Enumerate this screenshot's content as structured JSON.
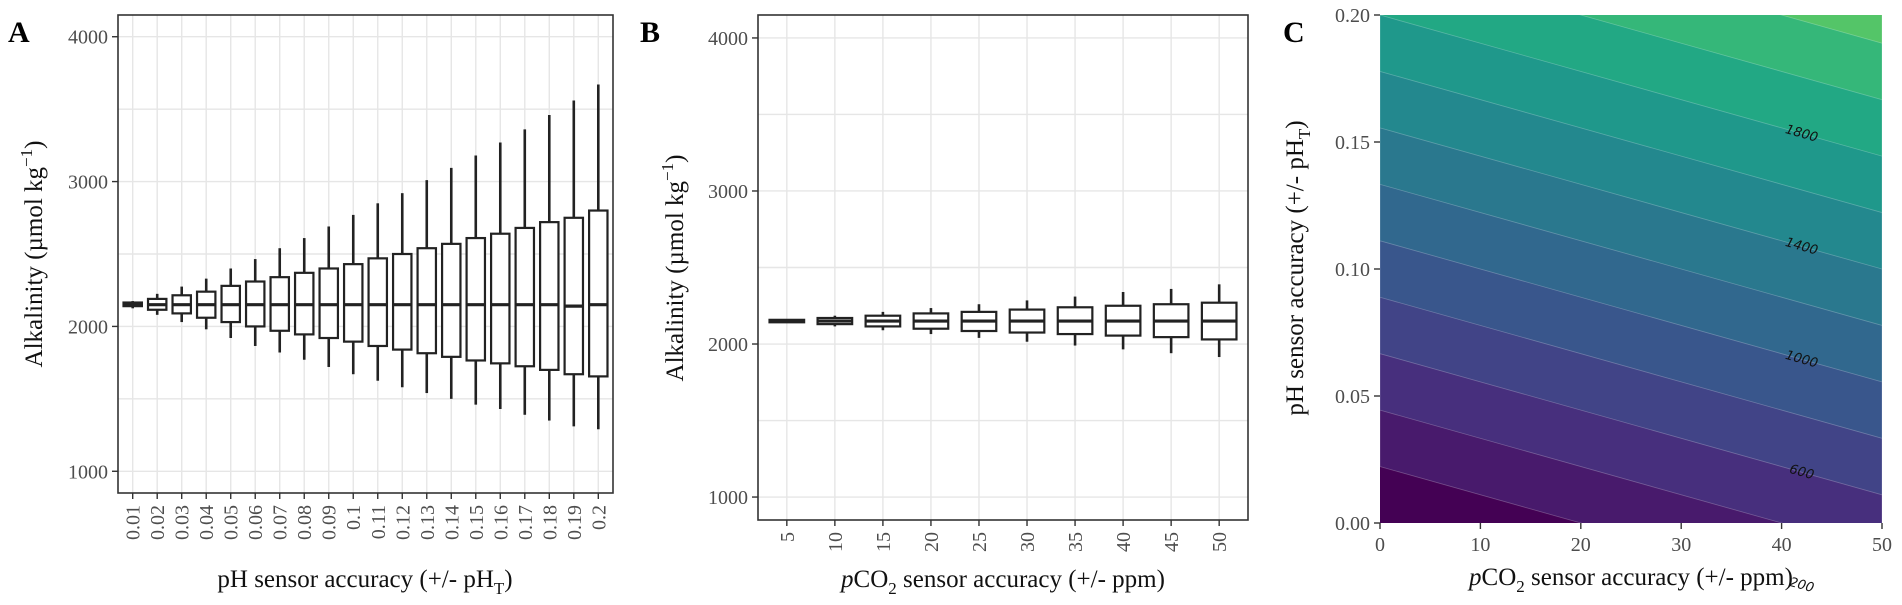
{
  "chart_data": [
    {
      "panel": "A",
      "type": "boxplot",
      "xlabel": "pH sensor accuracy (+/- pH",
      "xlabel_sub": "T",
      "xlabel_tail": ")",
      "ylabel": "Alkalinity (µmol kg",
      "ylabel_sup": "−1",
      "ylabel_tail": ")",
      "ylim": [
        850,
        4150
      ],
      "yticks": [
        1000,
        2000,
        3000,
        4000
      ],
      "categories": [
        "0.01",
        "0.02",
        "0.03",
        "0.04",
        "0.05",
        "0.06",
        "0.07",
        "0.08",
        "0.09",
        "0.1",
        "0.11",
        "0.12",
        "0.13",
        "0.14",
        "0.15",
        "0.16",
        "0.17",
        "0.18",
        "0.19",
        "0.2"
      ],
      "boxes": [
        {
          "lo": 2125,
          "q1": 2140,
          "med": 2150,
          "q3": 2165,
          "hi": 2175
        },
        {
          "lo": 2080,
          "q1": 2115,
          "med": 2150,
          "q3": 2190,
          "hi": 2225
        },
        {
          "lo": 2030,
          "q1": 2090,
          "med": 2150,
          "q3": 2215,
          "hi": 2275
        },
        {
          "lo": 1980,
          "q1": 2060,
          "med": 2150,
          "q3": 2240,
          "hi": 2330
        },
        {
          "lo": 1920,
          "q1": 2030,
          "med": 2150,
          "q3": 2280,
          "hi": 2400
        },
        {
          "lo": 1865,
          "q1": 2000,
          "med": 2150,
          "q3": 2310,
          "hi": 2465
        },
        {
          "lo": 1820,
          "q1": 1970,
          "med": 2150,
          "q3": 2340,
          "hi": 2540
        },
        {
          "lo": 1770,
          "q1": 1945,
          "med": 2150,
          "q3": 2370,
          "hi": 2610
        },
        {
          "lo": 1720,
          "q1": 1920,
          "med": 2150,
          "q3": 2400,
          "hi": 2690
        },
        {
          "lo": 1670,
          "q1": 1895,
          "med": 2150,
          "q3": 2430,
          "hi": 2770
        },
        {
          "lo": 1625,
          "q1": 1865,
          "med": 2150,
          "q3": 2470,
          "hi": 2850
        },
        {
          "lo": 1580,
          "q1": 1840,
          "med": 2150,
          "q3": 2500,
          "hi": 2920
        },
        {
          "lo": 1540,
          "q1": 1815,
          "med": 2150,
          "q3": 2540,
          "hi": 3010
        },
        {
          "lo": 1500,
          "q1": 1790,
          "med": 2150,
          "q3": 2570,
          "hi": 3095
        },
        {
          "lo": 1460,
          "q1": 1765,
          "med": 2150,
          "q3": 2610,
          "hi": 3180
        },
        {
          "lo": 1430,
          "q1": 1745,
          "med": 2150,
          "q3": 2640,
          "hi": 3270
        },
        {
          "lo": 1390,
          "q1": 1725,
          "med": 2150,
          "q3": 2680,
          "hi": 3360
        },
        {
          "lo": 1350,
          "q1": 1700,
          "med": 2150,
          "q3": 2720,
          "hi": 3460
        },
        {
          "lo": 1310,
          "q1": 1670,
          "med": 2140,
          "q3": 2750,
          "hi": 3560
        },
        {
          "lo": 1290,
          "q1": 1655,
          "med": 2150,
          "q3": 2800,
          "hi": 3670
        }
      ]
    },
    {
      "panel": "B",
      "type": "boxplot",
      "xlabel_italic": "p",
      "xlabel": "CO",
      "xlabel_sub": "2",
      "xlabel_tail": " sensor accuracy (+/- ppm)",
      "ylabel": "Alkalinity (µmol kg",
      "ylabel_sup": "−1",
      "ylabel_tail": ")",
      "ylim": [
        850,
        4150
      ],
      "yticks": [
        1000,
        2000,
        3000,
        4000
      ],
      "categories": [
        "5",
        "10",
        "15",
        "20",
        "25",
        "30",
        "35",
        "40",
        "45",
        "50"
      ],
      "boxes": [
        {
          "lo": 2140,
          "q1": 2142,
          "med": 2150,
          "q3": 2158,
          "hi": 2160
        },
        {
          "lo": 2115,
          "q1": 2130,
          "med": 2150,
          "q3": 2170,
          "hi": 2185
        },
        {
          "lo": 2090,
          "q1": 2115,
          "med": 2150,
          "q3": 2185,
          "hi": 2210
        },
        {
          "lo": 2065,
          "q1": 2100,
          "med": 2150,
          "q3": 2200,
          "hi": 2235
        },
        {
          "lo": 2040,
          "q1": 2085,
          "med": 2150,
          "q3": 2210,
          "hi": 2260
        },
        {
          "lo": 2015,
          "q1": 2075,
          "med": 2150,
          "q3": 2225,
          "hi": 2285
        },
        {
          "lo": 1990,
          "q1": 2065,
          "med": 2150,
          "q3": 2240,
          "hi": 2310
        },
        {
          "lo": 1965,
          "q1": 2055,
          "med": 2150,
          "q3": 2250,
          "hi": 2340
        },
        {
          "lo": 1940,
          "q1": 2045,
          "med": 2150,
          "q3": 2260,
          "hi": 2360
        },
        {
          "lo": 1915,
          "q1": 2030,
          "med": 2150,
          "q3": 2270,
          "hi": 2390
        }
      ]
    },
    {
      "panel": "C",
      "type": "heatmap",
      "subtype": "filled_contour",
      "xlabel_italic": "p",
      "xlabel": "CO",
      "xlabel_sub": "2",
      "xlabel_tail": " sensor accuracy (+/- ppm)",
      "ylabel": "pH sensor accuracy (+/- pH",
      "ylabel_sub": "T",
      "ylabel_tail": ")",
      "xlim": [
        0,
        50
      ],
      "ylim": [
        0,
        0.2
      ],
      "xticks": [
        "0",
        "10",
        "20",
        "30",
        "40",
        "50"
      ],
      "yticks": [
        "0.00",
        "0.05",
        "0.10",
        "0.15",
        "0.20"
      ],
      "field": {
        "a": 9000,
        "b": 10
      },
      "levels": [
        0,
        200,
        400,
        600,
        800,
        1000,
        1200,
        1400,
        1600,
        1800,
        2000,
        2200
      ],
      "colors": [
        "#440154",
        "#481a6c",
        "#472f7d",
        "#414487",
        "#39568c",
        "#31688e",
        "#2a788e",
        "#23888e",
        "#1f988b",
        "#22a884",
        "#35b779",
        "#54c568",
        "#7ad151",
        "#a5db36",
        "#d2e21b"
      ],
      "contour_labels": [
        {
          "text": "200",
          "value": 200
        },
        {
          "text": "600",
          "value": 600
        },
        {
          "text": "1000",
          "value": 1000
        },
        {
          "text": "1400",
          "value": 1400
        },
        {
          "text": "1800",
          "value": 1800
        }
      ]
    }
  ],
  "panels": {
    "a": "A",
    "b": "B",
    "c": "C"
  }
}
